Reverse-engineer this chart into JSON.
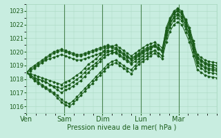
{
  "xlabel": "Pression niveau de la mer( hPa )",
  "ylim": [
    1015.5,
    1023.5
  ],
  "yticks": [
    1016,
    1017,
    1018,
    1019,
    1020,
    1021,
    1022,
    1023
  ],
  "day_labels": [
    "Ven",
    "Sam",
    "Dim",
    "Lun",
    "Mar"
  ],
  "day_positions": [
    0,
    48,
    96,
    144,
    192
  ],
  "background_color": "#c8ede0",
  "grid_color": "#a8d8c0",
  "line_color": "#1a5c1a",
  "total_hours": 240,
  "series": [
    [
      1018.5,
      1018.3,
      1018.1,
      1018.0,
      1017.9,
      1017.8,
      1017.6,
      1017.5,
      1017.4,
      1017.3,
      1017.5,
      1017.6,
      1017.8,
      1018.0,
      1018.2,
      1018.5,
      1018.8,
      1019.0,
      1019.2,
      1019.5,
      1019.8,
      1020.0,
      1020.1,
      1020.2,
      1020.0,
      1019.8,
      1019.6,
      1019.5,
      1019.7,
      1019.8,
      1020.0,
      1020.2,
      1020.3,
      1020.5,
      1020.3,
      1020.1,
      1021.5,
      1022.3,
      1022.8,
      1023.0,
      1022.8,
      1022.2,
      1021.5,
      1020.5,
      1019.5,
      1019.3,
      1019.1,
      1019.0,
      1018.9,
      1018.8
    ],
    [
      1018.5,
      1018.3,
      1018.1,
      1018.0,
      1017.9,
      1017.8,
      1017.6,
      1017.4,
      1017.2,
      1017.0,
      1017.2,
      1017.3,
      1017.5,
      1017.7,
      1017.9,
      1018.2,
      1018.5,
      1018.8,
      1019.0,
      1019.3,
      1019.6,
      1019.8,
      1019.9,
      1020.0,
      1019.8,
      1019.6,
      1019.4,
      1019.2,
      1019.5,
      1019.7,
      1019.9,
      1020.1,
      1020.2,
      1020.4,
      1020.2,
      1020.0,
      1021.3,
      1022.1,
      1022.6,
      1022.8,
      1022.6,
      1022.0,
      1021.3,
      1020.3,
      1019.3,
      1019.1,
      1018.9,
      1018.8,
      1018.75,
      1018.7
    ],
    [
      1018.5,
      1018.2,
      1018.0,
      1017.8,
      1017.6,
      1017.4,
      1017.2,
      1017.0,
      1016.8,
      1016.5,
      1016.3,
      1016.2,
      1016.4,
      1016.7,
      1017.0,
      1017.3,
      1017.6,
      1017.9,
      1018.2,
      1018.5,
      1018.8,
      1019.1,
      1019.3,
      1019.4,
      1019.2,
      1019.0,
      1018.8,
      1018.7,
      1019.0,
      1019.3,
      1019.5,
      1019.7,
      1019.9,
      1020.1,
      1019.9,
      1019.7,
      1021.0,
      1021.8,
      1022.3,
      1022.5,
      1022.3,
      1021.7,
      1021.0,
      1020.0,
      1019.0,
      1018.8,
      1018.6,
      1018.5,
      1018.45,
      1018.4
    ],
    [
      1018.5,
      1018.2,
      1017.9,
      1017.7,
      1017.5,
      1017.3,
      1017.1,
      1016.9,
      1016.6,
      1016.3,
      1016.1,
      1016.0,
      1016.2,
      1016.5,
      1016.8,
      1017.1,
      1017.4,
      1017.7,
      1018.0,
      1018.3,
      1018.6,
      1018.9,
      1019.1,
      1019.2,
      1019.0,
      1018.8,
      1018.6,
      1018.4,
      1018.8,
      1019.1,
      1019.3,
      1019.5,
      1019.7,
      1019.9,
      1019.7,
      1019.5,
      1020.7,
      1021.5,
      1022.0,
      1022.2,
      1022.0,
      1021.4,
      1020.7,
      1019.7,
      1018.7,
      1018.5,
      1018.3,
      1018.2,
      1018.15,
      1018.1
    ],
    [
      1018.5,
      1018.8,
      1019.0,
      1019.2,
      1019.4,
      1019.6,
      1019.8,
      1020.0,
      1020.1,
      1020.2,
      1020.1,
      1020.0,
      1019.9,
      1019.8,
      1019.8,
      1019.9,
      1020.0,
      1020.1,
      1020.2,
      1020.3,
      1020.4,
      1020.5,
      1020.4,
      1020.3,
      1020.1,
      1019.9,
      1019.7,
      1019.5,
      1019.7,
      1019.9,
      1020.1,
      1020.3,
      1020.4,
      1020.5,
      1020.3,
      1020.1,
      1021.8,
      1022.5,
      1023.0,
      1023.2,
      1023.0,
      1022.4,
      1021.8,
      1020.8,
      1019.8,
      1019.6,
      1019.4,
      1019.3,
      1019.25,
      1019.2
    ],
    [
      1018.5,
      1018.7,
      1018.9,
      1019.1,
      1019.3,
      1019.5,
      1019.7,
      1019.9,
      1020.0,
      1020.1,
      1020.0,
      1019.9,
      1019.8,
      1019.7,
      1019.7,
      1019.8,
      1019.9,
      1020.0,
      1020.1,
      1020.2,
      1020.3,
      1020.4,
      1020.3,
      1020.2,
      1020.0,
      1019.8,
      1019.6,
      1019.4,
      1019.6,
      1019.8,
      1020.0,
      1020.2,
      1020.3,
      1020.4,
      1020.2,
      1020.0,
      1021.6,
      1022.3,
      1022.8,
      1023.0,
      1022.8,
      1022.2,
      1021.6,
      1020.6,
      1019.6,
      1019.4,
      1019.2,
      1019.1,
      1019.05,
      1019.0
    ],
    [
      1018.5,
      1018.6,
      1018.8,
      1019.0,
      1019.2,
      1019.4,
      1019.5,
      1019.6,
      1019.7,
      1019.8,
      1019.7,
      1019.6,
      1019.5,
      1019.4,
      1019.4,
      1019.5,
      1019.6,
      1019.7,
      1019.8,
      1019.9,
      1020.0,
      1020.1,
      1020.0,
      1019.9,
      1019.7,
      1019.5,
      1019.3,
      1019.1,
      1019.3,
      1019.5,
      1019.7,
      1019.9,
      1020.0,
      1020.1,
      1019.9,
      1019.7,
      1021.2,
      1022.0,
      1022.5,
      1022.7,
      1022.5,
      1021.9,
      1021.2,
      1020.2,
      1019.2,
      1019.0,
      1018.8,
      1018.7,
      1018.65,
      1018.6
    ],
    [
      1018.5,
      1018.4,
      1018.3,
      1018.2,
      1018.1,
      1018.0,
      1017.9,
      1017.8,
      1017.7,
      1017.6,
      1017.8,
      1017.9,
      1018.1,
      1018.3,
      1018.5,
      1018.8,
      1019.1,
      1019.3,
      1019.5,
      1019.8,
      1020.1,
      1020.3,
      1020.4,
      1020.5,
      1020.3,
      1020.1,
      1019.9,
      1019.7,
      1019.9,
      1020.1,
      1020.3,
      1020.5,
      1020.6,
      1020.7,
      1020.5,
      1020.3,
      1021.6,
      1022.4,
      1022.9,
      1023.1,
      1022.9,
      1022.3,
      1021.6,
      1020.6,
      1019.6,
      1019.4,
      1019.2,
      1019.1,
      1019.05,
      1019.0
    ]
  ]
}
